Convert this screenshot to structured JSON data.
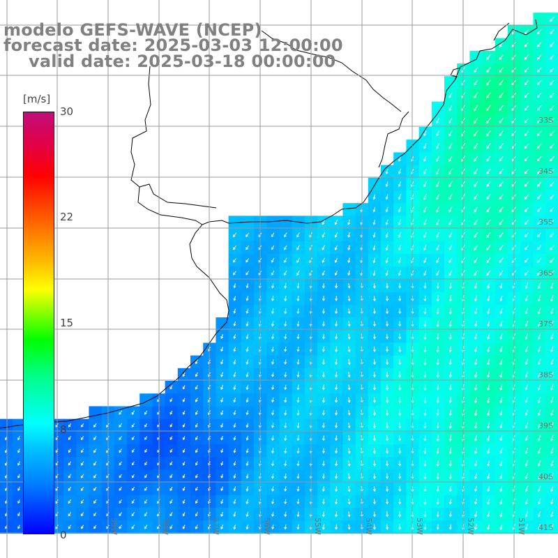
{
  "title": {
    "model": "modelo GEFS-WAVE (NCEP)",
    "forecast": "forecast date: 2025-03-03 12:00:00",
    "valid": "valid date: 2025-03-18 00:00:00"
  },
  "colorbar": {
    "units": "[m/s]",
    "ticks": [
      "30",
      "22",
      "15",
      "8",
      "0"
    ],
    "tick_values": [
      30,
      22,
      15,
      8,
      0
    ],
    "range": [
      0,
      30
    ],
    "colors": [
      "#0000ff",
      "#0080ff",
      "#00ffff",
      "#00ff00",
      "#ffff00",
      "#ff8000",
      "#ff0000",
      "#c0107a"
    ]
  },
  "map": {
    "lat_labels": [
      "33S",
      "34S",
      "35S",
      "36S",
      "37S",
      "38S",
      "39S",
      "40S",
      "41S"
    ],
    "lon_labels": [
      "59W",
      "58W",
      "57W",
      "56W",
      "55W",
      "54W",
      "53W",
      "52W",
      "51W"
    ],
    "field": "wind speed with direction arrows",
    "land_color": "#ffffff",
    "grid_color": "#999999"
  }
}
